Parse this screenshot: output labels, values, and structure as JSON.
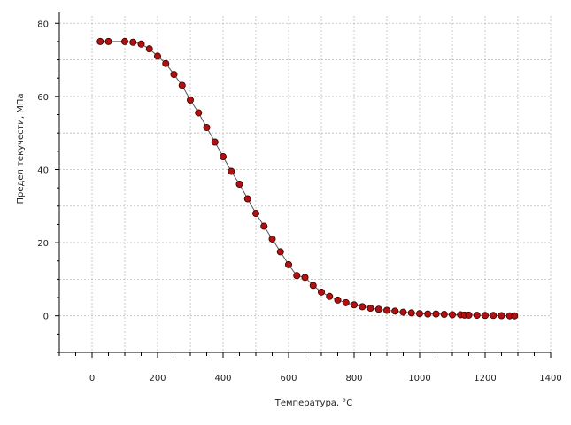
{
  "chart_data": {
    "type": "scatter",
    "title": "",
    "xlabel": "Температура, °C",
    "ylabel": "Предел текучести, МПа",
    "xlim": [
      -100,
      1400
    ],
    "ylim": [
      -10,
      82
    ],
    "xticks": [
      0,
      200,
      400,
      600,
      800,
      1000,
      1200,
      1400
    ],
    "yticks": [
      0,
      20,
      40,
      60,
      80
    ],
    "grid": true,
    "legend": "none",
    "colors": {
      "marker": "#b01010",
      "marker_edge": "#3a0000",
      "line": "#555555",
      "grid": "#bdbdbd",
      "axis": "#000000"
    },
    "series": [
      {
        "x": [
          25,
          50,
          100,
          125,
          150,
          175,
          200,
          225,
          250,
          275,
          300,
          325,
          350,
          375,
          400,
          425,
          450,
          475,
          500,
          525,
          550,
          575,
          600,
          625,
          650,
          675,
          700,
          725,
          750,
          775,
          800,
          825,
          850,
          875,
          900,
          925,
          950,
          975,
          1000,
          1025,
          1050,
          1075,
          1100,
          1125,
          1137,
          1150,
          1175,
          1200,
          1225,
          1250,
          1275,
          1290
        ],
        "y": [
          75,
          75,
          75,
          74.8,
          74.3,
          73,
          71,
          69,
          66,
          63,
          59,
          55.5,
          51.5,
          47.5,
          43.5,
          39.5,
          36,
          32,
          28,
          24.5,
          21,
          17.5,
          14,
          11,
          10.5,
          8.3,
          6.5,
          5.3,
          4.3,
          3.6,
          3.0,
          2.5,
          2.1,
          1.8,
          1.5,
          1.3,
          1.0,
          0.8,
          0.6,
          0.5,
          0.5,
          0.4,
          0.3,
          0.3,
          0.2,
          0.2,
          0.15,
          0.1,
          0.1,
          0.05,
          0.0,
          0.0
        ]
      }
    ]
  }
}
